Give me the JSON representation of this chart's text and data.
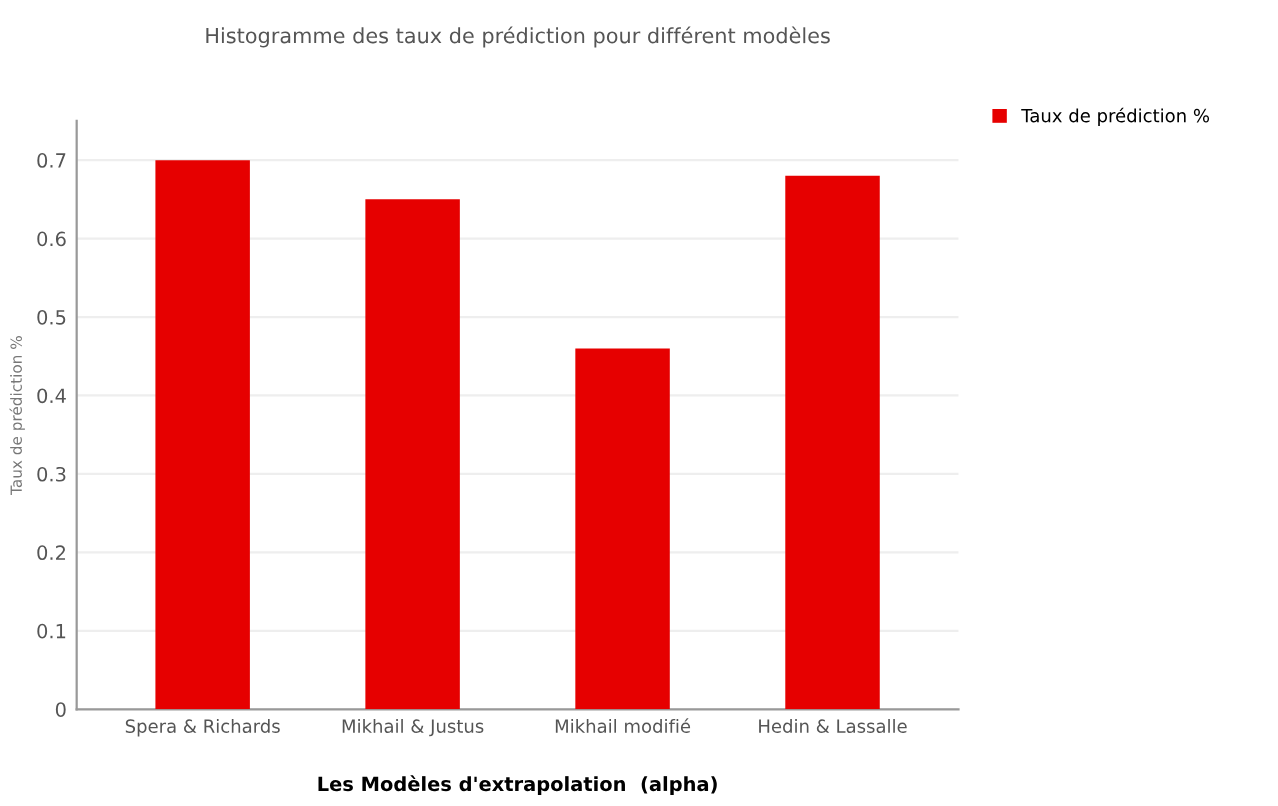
{
  "chart_data": {
    "type": "bar",
    "title": "Histogramme des taux de prédiction pour différent modèles",
    "xlabel": "Les Modèles d'extrapolation  (alpha)",
    "ylabel": "Taux de prédiction %",
    "categories": [
      "Spera & Richards",
      "Mikhail & Justus",
      "Mikhail modifié",
      "Hedin & Lassalle"
    ],
    "series": [
      {
        "name": "Taux de prédiction %",
        "color": "#e60000",
        "values": [
          0.7,
          0.65,
          0.46,
          0.68
        ]
      }
    ],
    "ylim": [
      0,
      0.75
    ],
    "yticks": [
      0,
      0.1,
      0.2,
      0.3,
      0.4,
      0.5,
      0.6,
      0.7
    ],
    "grid": "y",
    "legend": "top right"
  }
}
